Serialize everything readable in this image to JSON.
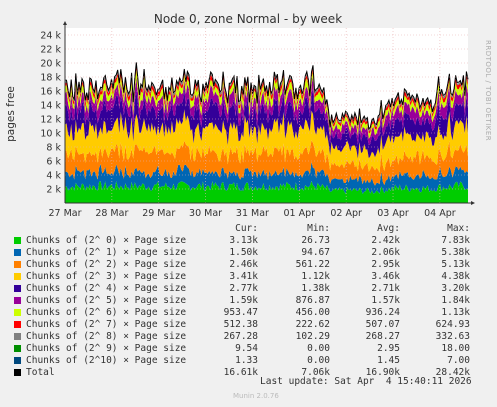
{
  "chart_data": {
    "type": "area",
    "title": "Node 0, zone Normal - by week",
    "ylabel": "pages free",
    "side_label": "RRDTOOL / TOBI OETIKER",
    "x_ticks": [
      "27 Mar",
      "28 Mar",
      "29 Mar",
      "30 Mar",
      "31 Mar",
      "01 Apr",
      "02 Apr",
      "03 Apr",
      "04 Apr"
    ],
    "y_ticks": [
      "2 k",
      "4 k",
      "6 k",
      "8 k",
      "10 k",
      "12 k",
      "14 k",
      "16 k",
      "18 k",
      "20 k",
      "22 k",
      "24 k"
    ],
    "ylim": [
      0,
      25000
    ],
    "x_range_days": [
      0,
      8.6
    ],
    "grid": true,
    "series": [
      {
        "name": "Chunks of (2^ 0) × Page size",
        "color": "#00cc00",
        "cur": "3.13k",
        "min": "26.73",
        "avg": "2.42k",
        "max": "7.83k",
        "avg_value": 2420
      },
      {
        "name": "Chunks of (2^ 1) × Page size",
        "color": "#0066b3",
        "cur": "1.50k",
        "min": "94.67",
        "avg": "2.06k",
        "max": "5.38k",
        "avg_value": 2060
      },
      {
        "name": "Chunks of (2^ 2) × Page size",
        "color": "#ff8000",
        "cur": "2.46k",
        "min": "561.22",
        "avg": "2.95k",
        "max": "5.13k",
        "avg_value": 2950
      },
      {
        "name": "Chunks of (2^ 3) × Page size",
        "color": "#ffcc00",
        "cur": "3.41k",
        "min": "1.12k",
        "avg": "3.46k",
        "max": "4.38k",
        "avg_value": 3460
      },
      {
        "name": "Chunks of (2^ 4) × Page size",
        "color": "#330099",
        "cur": "2.77k",
        "min": "1.38k",
        "avg": "2.71k",
        "max": "3.20k",
        "avg_value": 2710
      },
      {
        "name": "Chunks of (2^ 5) × Page size",
        "color": "#990099",
        "cur": "1.59k",
        "min": "876.87",
        "avg": "1.57k",
        "max": "1.84k",
        "avg_value": 1570
      },
      {
        "name": "Chunks of (2^ 6) × Page size",
        "color": "#ccff00",
        "cur": "953.47",
        "min": "456.00",
        "avg": "936.24",
        "max": "1.13k",
        "avg_value": 936
      },
      {
        "name": "Chunks of (2^ 7) × Page size",
        "color": "#ff0000",
        "cur": "512.38",
        "min": "222.62",
        "avg": "507.07",
        "max": "624.93",
        "avg_value": 507
      },
      {
        "name": "Chunks of (2^ 8) × Page size",
        "color": "#808080",
        "cur": "267.28",
        "min": "102.29",
        "avg": "268.27",
        "max": "332.63",
        "avg_value": 268
      },
      {
        "name": "Chunks of (2^ 9) × Page size",
        "color": "#008f00",
        "cur": "9.54",
        "min": "0.00",
        "avg": "2.95",
        "max": "18.00",
        "avg_value": 3
      },
      {
        "name": "Chunks of (2^10) × Page size",
        "color": "#00487d",
        "cur": "1.33",
        "min": "0.00",
        "avg": "1.45",
        "max": "7.00",
        "avg_value": 1.5
      },
      {
        "name": "Total",
        "color": "#000000",
        "cur": "16.61k",
        "min": "7.06k",
        "avg": "16.90k",
        "max": "28.42k",
        "avg_value": 16900
      }
    ]
  },
  "legend_header": {
    "cur": "Cur:",
    "min": "Min:",
    "avg": "Avg:",
    "max": "Max:"
  },
  "last_update": "Last update: Sat Apr  4 15:40:11 2026",
  "munin_version": "Munin 2.0.76"
}
